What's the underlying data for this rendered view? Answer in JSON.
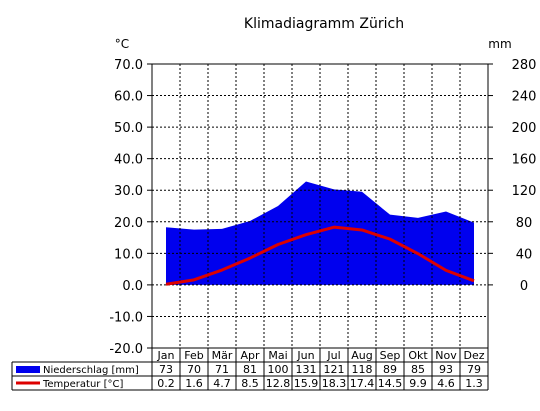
{
  "chart_data": {
    "type": "area",
    "title": "Klimadiagramm Zürich",
    "y_left_unit": "°C",
    "y_right_unit": "mm",
    "y_left_ticks": [
      "70.0",
      "60.0",
      "50.0",
      "40.0",
      "30.0",
      "20.0",
      "10.0",
      "0.0",
      "-10.0",
      "-20.0"
    ],
    "y_right_ticks": [
      "280",
      "240",
      "200",
      "160",
      "120",
      "80",
      "40",
      "0"
    ],
    "ylim_left": [
      -20,
      70
    ],
    "ylim_right": [
      -80,
      280
    ],
    "grid": true,
    "categories": [
      "Jan",
      "Feb",
      "Mär",
      "Apr",
      "Mai",
      "Jun",
      "Jul",
      "Aug",
      "Sep",
      "Okt",
      "Nov",
      "Dez"
    ],
    "series": [
      {
        "name": "Niederschlag [mm]",
        "kind": "area",
        "axis": "right",
        "color": "#0000ee",
        "values": [
          73,
          70,
          71,
          81,
          100,
          131,
          121,
          118,
          89,
          85,
          93,
          79
        ],
        "labels": [
          "73",
          "70",
          "71",
          "81",
          "100",
          "131",
          "121",
          "118",
          "89",
          "85",
          "93",
          "79"
        ]
      },
      {
        "name": "Temperatur [°C]",
        "kind": "line",
        "axis": "left",
        "color": "#dd0000",
        "values": [
          0.2,
          1.6,
          4.7,
          8.5,
          12.8,
          15.9,
          18.3,
          17.4,
          14.5,
          9.9,
          4.6,
          1.3
        ],
        "labels": [
          "0.2",
          "1.6",
          "4.7",
          "8.5",
          "12.8",
          "15.9",
          "18.3",
          "17.4",
          "14.5",
          "9.9",
          "4.6",
          "1.3"
        ]
      }
    ]
  }
}
